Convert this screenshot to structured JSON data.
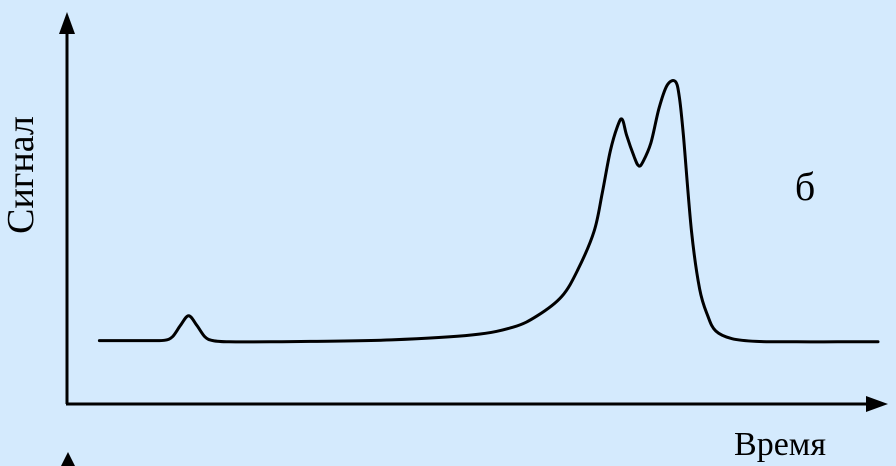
{
  "chart_data": {
    "type": "line",
    "xlabel": "Время",
    "ylabel": "Сигнал",
    "annotations": [
      "б"
    ],
    "grid": false,
    "xlim": [
      0,
      100
    ],
    "ylim": [
      0,
      100
    ],
    "series": [
      {
        "x": [
          4,
          10,
          12,
          13,
          14,
          15,
          16,
          17,
          18,
          20,
          25,
          30,
          40,
          50,
          55,
          58,
          61,
          63,
          65,
          66,
          67,
          68,
          68.5,
          69,
          70,
          70.5,
          71,
          72,
          73,
          74,
          75,
          75.5,
          76,
          77,
          78,
          79,
          80,
          82,
          85,
          90,
          95,
          100
        ],
        "y": [
          16.5,
          16.5,
          16.6,
          17.5,
          20.5,
          23,
          20.5,
          17.5,
          16.5,
          16.2,
          16.2,
          16.3,
          16.7,
          18,
          20,
          23,
          28,
          35,
          45,
          55,
          66,
          73,
          74,
          70,
          64,
          62,
          63,
          68,
          77,
          83,
          84,
          80,
          70,
          45,
          30,
          23,
          19,
          17,
          16.3,
          16.2,
          16.2,
          16.2
        ]
      }
    ]
  },
  "colors": {
    "background": "#d4eafd",
    "ink": "#000000"
  }
}
